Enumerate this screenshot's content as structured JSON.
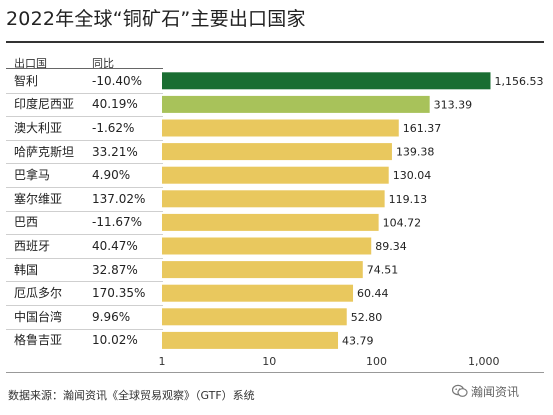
{
  "chart_data": {
    "type": "bar",
    "title": "2022年全球“铜矿石”主要出口国家",
    "column_headers": {
      "country": "出口国",
      "change": "同比"
    },
    "categories": [
      "智利",
      "印度尼西亚",
      "澳大利亚",
      "哈萨克斯坦",
      "巴拿马",
      "塞尔维亚",
      "巴西",
      "西班牙",
      "韩国",
      "厄瓜多尔",
      "中国台湾",
      "格鲁吉亚"
    ],
    "changes": [
      "-10.40%",
      "40.19%",
      "-1.62%",
      "33.21%",
      "4.90%",
      "137.02%",
      "-11.67%",
      "40.47%",
      "32.87%",
      "170.35%",
      "9.96%",
      "10.02%"
    ],
    "values": [
      1156.53,
      313.39,
      161.37,
      139.38,
      130.04,
      119.13,
      104.72,
      89.34,
      74.51,
      60.44,
      52.8,
      43.79
    ],
    "value_labels": [
      "1,156.53",
      "313.39",
      "161.37",
      "139.38",
      "130.04",
      "119.13",
      "104.72",
      "89.34",
      "74.51",
      "60.44",
      "52.80",
      "43.79"
    ],
    "x_scale": "log",
    "xlim": [
      1,
      2000
    ],
    "x_ticks": [
      1,
      10,
      100,
      1000
    ],
    "x_tick_labels": [
      "1",
      "10",
      "100",
      "1,000"
    ],
    "grid": false,
    "colors": {
      "first": "#1a6e32",
      "second": "#a8c25a",
      "rest": "#e9c85e"
    }
  },
  "footer": {
    "source": "数据来源：瀚闻资讯《全球贸易观察》（GTF）系统",
    "watermark": "瀚闻资讯"
  }
}
